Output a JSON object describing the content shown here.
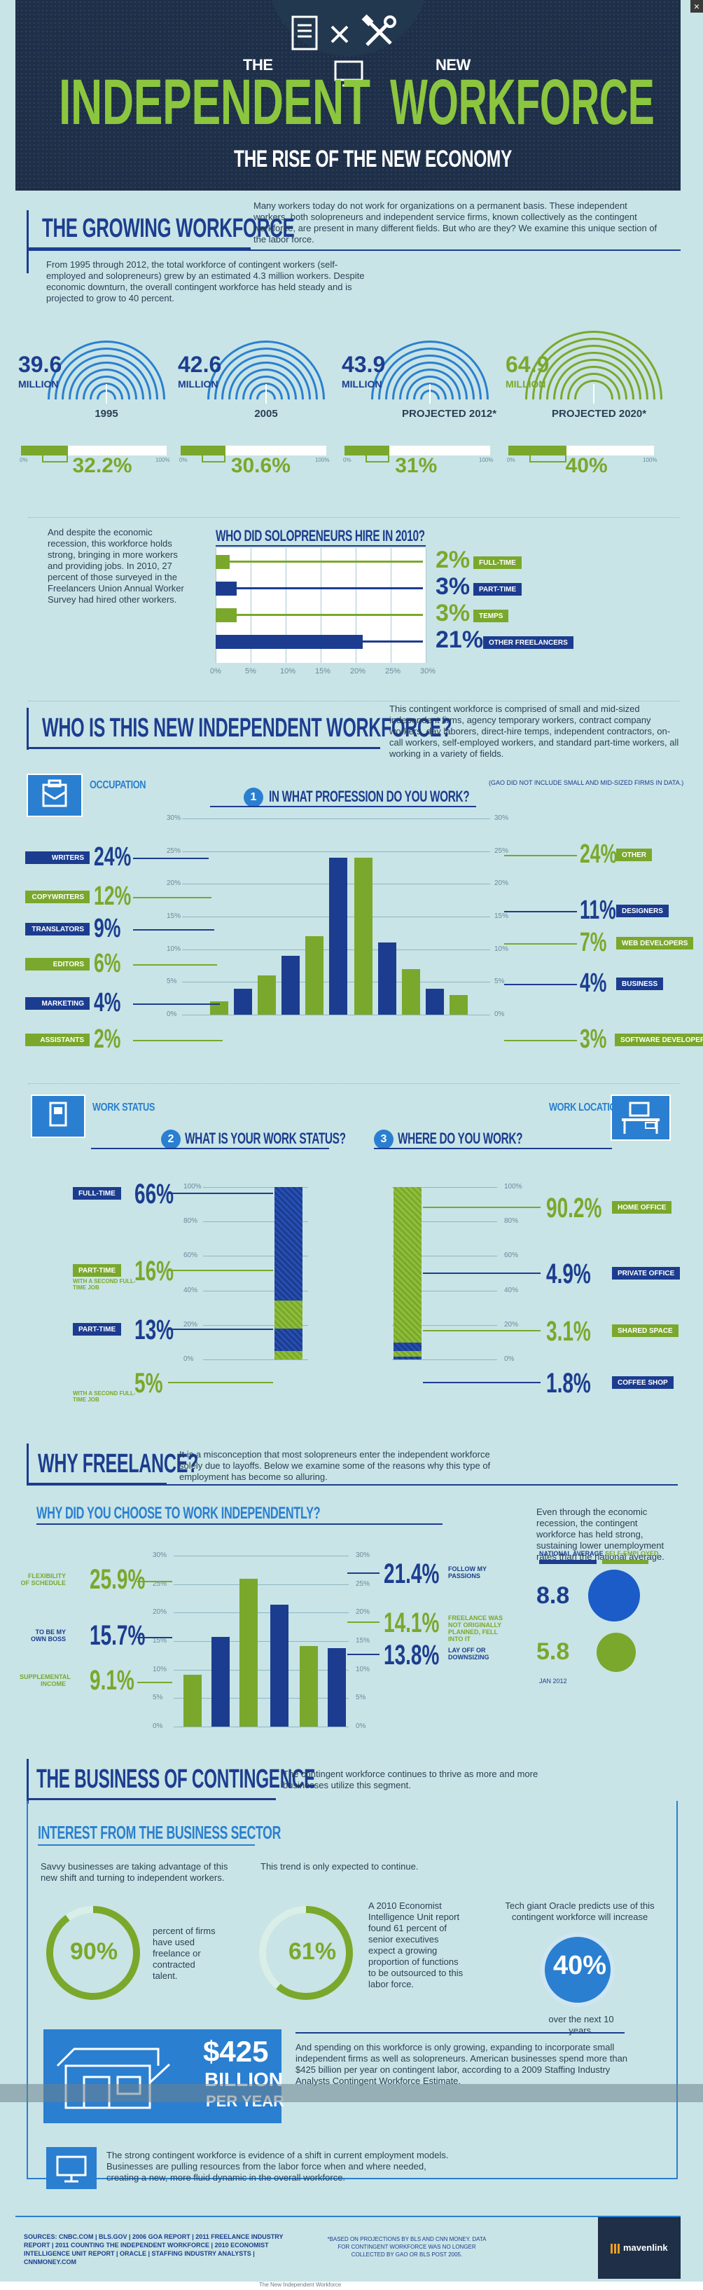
{
  "header": {
    "the": "THE",
    "new": "NEW",
    "independent": "INDEPENDENT",
    "workforce": "WORKFORCE",
    "subtitle": "THE RISE OF THE NEW ECONOMY",
    "icons": [
      "document-icon",
      "times-icon",
      "tools-icon",
      "monitor-icon"
    ]
  },
  "growing": {
    "title": "THE GROWING WORKFORCE",
    "intro": "Many workers today do not work for organizations on a permanent basis. These independent workers, both solopreneurs and independent service firms, known collectively as the contingent workforce, are present in many different fields. But who are they? We examine this unique section of the labor force.",
    "body": "From 1995 through 2012, the total workforce of contingent workers (self-employed and solopreneurs) grew by an estimated 4.3 million workers. Despite economic downturn, the overall contingent workforce has held steady and is projected to grow to 40 percent.",
    "years": [
      {
        "value": "39.6",
        "unit": "MILLION",
        "label": "1995",
        "pct": "32.2%",
        "share": 0.322
      },
      {
        "value": "42.6",
        "unit": "MILLION",
        "label": "2005",
        "pct": "30.6%",
        "share": 0.306
      },
      {
        "value": "43.9",
        "unit": "MILLION",
        "label": "PROJECTED 2012*",
        "pct": "31%",
        "share": 0.31
      },
      {
        "value": "64.9",
        "unit": "MILLION",
        "label": "PROJECTED 2020*",
        "pct": "40%",
        "share": 0.4
      }
    ],
    "bar_min": "0%",
    "bar_max": "100%"
  },
  "hire": {
    "text": "And despite the economic recession, this workforce holds strong, bringing in more workers and providing jobs. In 2010, 27 percent of those surveyed in the Freelancers Union Annual Worker Survey had hired other workers.",
    "title": "WHO DID SOLOPRENEURS HIRE IN 2010?",
    "ticks": [
      "0%",
      "5%",
      "10%",
      "15%",
      "20%",
      "25%",
      "30%"
    ],
    "items": [
      {
        "pct": "2%",
        "label": "FULL-TIME",
        "value": 2,
        "color": "#7aa82c"
      },
      {
        "pct": "3%",
        "label": "PART-TIME",
        "value": 3,
        "color": "#1c3d8f"
      },
      {
        "pct": "3%",
        "label": "TEMPS",
        "value": 3,
        "color": "#7aa82c"
      },
      {
        "pct": "21%",
        "label": "OTHER FREELANCERS",
        "value": 21,
        "color": "#1c3d8f"
      }
    ]
  },
  "who": {
    "title": "WHO IS THIS NEW INDEPENDENT WORKFORCE?",
    "text": "This contingent workforce is comprised of small and mid-sized independent firms, agency temporary workers, contract company workers, day laborers, direct-hire temps, independent contractors, on-call workers, self-employed workers, and standard part-time workers, all working in a variety of fields.",
    "occupation": "OCCUPATION",
    "num": "1",
    "question": "IN WHAT PROFESSION DO YOU WORK?",
    "note": "(GAO DID NOT INCLUDE SMALL AND MID-SIZED FIRMS IN DATA.)",
    "ticks": [
      "30%",
      "25%",
      "20%",
      "15%",
      "10%",
      "5%",
      "0%"
    ],
    "left": [
      {
        "label": "WRITERS",
        "pct": "24%",
        "value": 24,
        "color": "#1c3d8f"
      },
      {
        "label": "COPYWRITERS",
        "pct": "12%",
        "value": 12,
        "color": "#7aa82c"
      },
      {
        "label": "TRANSLATORS",
        "pct": "9%",
        "value": 9,
        "color": "#1c3d8f"
      },
      {
        "label": "EDITORS",
        "pct": "6%",
        "value": 6,
        "color": "#7aa82c"
      },
      {
        "label": "MARKETING",
        "pct": "4%",
        "value": 4,
        "color": "#1c3d8f"
      },
      {
        "label": "ASSISTANTS",
        "pct": "2%",
        "value": 2,
        "color": "#7aa82c"
      }
    ],
    "right": [
      {
        "label": "OTHER",
        "pct": "24%",
        "value": 24,
        "color": "#7aa82c"
      },
      {
        "label": "DESIGNERS",
        "pct": "11%",
        "value": 11,
        "color": "#1c3d8f"
      },
      {
        "label": "WEB DEVELOPERS",
        "pct": "7%",
        "value": 7,
        "color": "#7aa82c"
      },
      {
        "label": "BUSINESS",
        "pct": "4%",
        "value": 4,
        "color": "#1c3d8f"
      },
      {
        "label": "SOFTWARE DEVELOPERS",
        "pct": "3%",
        "value": 3,
        "color": "#7aa82c"
      }
    ]
  },
  "status": {
    "title": "WORK STATUS",
    "num": "2",
    "question": "WHAT IS YOUR WORK STATUS?",
    "ticks": [
      "100%",
      "80%",
      "60%",
      "40%",
      "20%",
      "0%"
    ],
    "items": [
      {
        "label": "FULL-TIME",
        "pct": "66%",
        "value": 66,
        "color": "#1c3d8f",
        "sub": ""
      },
      {
        "label": "PART-TIME",
        "pct": "16%",
        "value": 16,
        "color": "#7aa82c",
        "sub": "WITH A SECOND FULL-TIME JOB"
      },
      {
        "label": "PART-TIME",
        "pct": "13%",
        "value": 13,
        "color": "#1c3d8f",
        "sub": ""
      },
      {
        "label": "",
        "pct": "5%",
        "value": 5,
        "color": "#7aa82c",
        "sub": "WITH A SECOND FULL-TIME JOB"
      }
    ]
  },
  "location": {
    "title": "WORK LOCATION",
    "num": "3",
    "question": "WHERE DO YOU WORK?",
    "ticks": [
      "100%",
      "80%",
      "60%",
      "40%",
      "20%",
      "0%"
    ],
    "items": [
      {
        "label": "HOME OFFICE",
        "pct": "90.2%",
        "value": 90.2,
        "color": "#7aa82c"
      },
      {
        "label": "PRIVATE OFFICE",
        "pct": "4.9%",
        "value": 4.9,
        "color": "#1c3d8f"
      },
      {
        "label": "SHARED SPACE",
        "pct": "3.1%",
        "value": 3.1,
        "color": "#7aa82c"
      },
      {
        "label": "COFFEE SHOP",
        "pct": "1.8%",
        "value": 1.8,
        "color": "#1c3d8f"
      }
    ]
  },
  "freelance": {
    "title": "WHY FREELANCE?",
    "text": "It is a misconception that most solopreneurs enter the independent workforce solely due to layoffs. Below we examine some of the reasons why this type of employment has become so alluring.",
    "question": "WHY DID YOU CHOOSE TO WORK INDEPENDENTLY?",
    "ticks": [
      "30%",
      "25%",
      "20%",
      "15%",
      "10%",
      "5%",
      "0%"
    ],
    "left": [
      {
        "label": "FLEXIBILITY OF SCHEDULE",
        "pct": "25.9%",
        "value": 25.9,
        "color": "#7aa82c"
      },
      {
        "label": "TO BE MY OWN BOSS",
        "pct": "15.7%",
        "value": 15.7,
        "color": "#1c3d8f"
      },
      {
        "label": "SUPPLEMENTAL INCOME",
        "pct": "9.1%",
        "value": 9.1,
        "color": "#7aa82c"
      }
    ],
    "right": [
      {
        "label": "FOLLOW MY PASSIONS",
        "pct": "21.4%",
        "value": 21.4,
        "color": "#1c3d8f"
      },
      {
        "label": "FREELANCE WAS NOT ORIGINALLY PLANNED, FELL INTO IT",
        "pct": "14.1%",
        "value": 14.1,
        "color": "#7aa82c"
      },
      {
        "label": "LAY OFF OR DOWNSIZING",
        "pct": "13.8%",
        "value": 13.8,
        "color": "#1c3d8f"
      }
    ],
    "unemp_text": "Even through the economic recession, the contingent workforce has held strong, sustaining lower unemployment rates than the national average.",
    "nat_label": "NATIONAL AVERAGE",
    "self_label": "SELF-EMPLOYED",
    "nat_value": "8.8",
    "self_value": "5.8",
    "date": "JAN 2012"
  },
  "business": {
    "title": "THE BUSINESS OF CONTINGENCE",
    "text": "The contingent workforce continues to thrive as more and more businesses utilize this segment.",
    "interest": "INTEREST FROM THE BUSINESS SECTOR",
    "savvy": "Savvy businesses are taking advantage of this new shift and turning to independent workers.",
    "continue": "This trend is only expected to continue.",
    "c1_value": "90%",
    "c1_text": "percent of firms have used freelance or contracted talent.",
    "c2_value": "61%",
    "c2_text": "A 2010 Economist Intelligence Unit report found 61 percent of senior executives expect a growing proportion of functions to be outsourced to this labor force.",
    "oracle_text": "Tech giant Oracle predicts use of this contingent workforce will increase",
    "c3_value": "40%",
    "c3_after": "over the next 10 years.",
    "money_value": "$425",
    "money_unit": "BILLION",
    "money_period": "PER YEAR",
    "money_text": "And spending on this workforce is only growing, expanding to incorporate small independent firms as well as solopreneurs. American businesses spend more than $425 billion per year on contingent labor, according to a 2009 Staffing Industry Analysts Contingent Workforce Estimate.",
    "closing": "The strong contingent workforce is evidence of a shift in current employment models. Businesses are pulling resources from the labor force when and where needed, creating a new, more fluid dynamic in the overall workforce."
  },
  "footer": {
    "sources": "SOURCES: CNBC.COM | BLS.GOV | 2006 GOA REPORT | 2011 FREELANCE INDUSTRY REPORT | 2011 COUNTING THE INDEPENDENT WORKFORCE | 2010 ECONOMIST INTELLIGENCE UNIT REPORT | ORACLE | STAFFING INDUSTRY ANALYSTS | CNNMONEY.COM",
    "note": "*BASED ON PROJECTIONS BY BLS AND CNN MONEY. DATA FOR CONTINGENT WORKFORCE WAS NO LONGER COLLECTED BY GAO OR BLS POST 2005.",
    "brand": "mavenlink",
    "caption": "The New Independent Workforce",
    "close": "×"
  },
  "colors": {
    "navy": "#1c3d8f",
    "green": "#7aa82c",
    "bg": "#c8e4e6",
    "header": "#1e2f47"
  }
}
